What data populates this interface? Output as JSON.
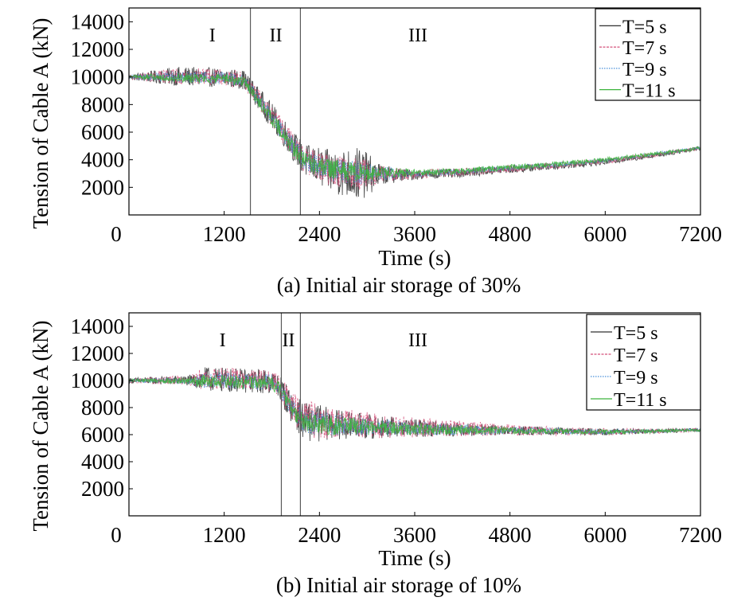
{
  "chart_data": [
    {
      "type": "line",
      "title": "(a) Initial air storage of 30%",
      "xlabel": "Time (s)",
      "ylabel": "Tension of Cable A (kN)",
      "xlim": [
        0,
        7200
      ],
      "ylim": [
        0,
        15000
      ],
      "xticks": [
        0,
        1200,
        2400,
        3600,
        4800,
        6000,
        7200
      ],
      "yticks": [
        2000,
        4000,
        6000,
        8000,
        10000,
        12000,
        14000
      ],
      "legend_position": "top-right",
      "stage_boundaries": [
        1530,
        2160
      ],
      "stage_labels": [
        {
          "text": "I",
          "x": 1050
        },
        {
          "text": "II",
          "x": 1850
        },
        {
          "text": "III",
          "x": 3640
        }
      ],
      "series": [
        {
          "name": "T=5 s",
          "color": "#303030",
          "dash": "",
          "noise": [
            [
              0,
              200
            ],
            [
              600,
              700
            ],
            [
              1450,
              700
            ],
            [
              2200,
              1200
            ],
            [
              2900,
              2000
            ],
            [
              3200,
              700
            ],
            [
              3600,
              350
            ],
            [
              7200,
              150
            ]
          ],
          "x": [
            0,
            300,
            600,
            900,
            1200,
            1450,
            1600,
            1900,
            2200,
            2500,
            2800,
            3100,
            3600,
            4200,
            4800,
            5400,
            6000,
            6600,
            7200
          ],
          "values": [
            10000,
            10000,
            10050,
            10000,
            9950,
            9800,
            8700,
            6400,
            4000,
            3200,
            3000,
            2900,
            2900,
            3050,
            3300,
            3550,
            3850,
            4300,
            4850
          ]
        },
        {
          "name": "T=7 s",
          "color": "#d4507a",
          "dash": "3,1.5",
          "noise": [
            [
              0,
              150
            ],
            [
              600,
              600
            ],
            [
              1450,
              600
            ],
            [
              2200,
              1000
            ],
            [
              2900,
              1200
            ],
            [
              3200,
              600
            ],
            [
              3600,
              300
            ],
            [
              7200,
              120
            ]
          ],
          "x": [
            0,
            300,
            600,
            900,
            1200,
            1450,
            1600,
            1900,
            2200,
            2500,
            2800,
            3100,
            3600,
            4200,
            4800,
            5400,
            6000,
            6600,
            7200
          ],
          "values": [
            10000,
            10000,
            10100,
            10050,
            9950,
            9800,
            8650,
            6350,
            3950,
            3250,
            3050,
            2950,
            2950,
            3100,
            3350,
            3600,
            3900,
            4350,
            4850
          ]
        },
        {
          "name": "T=9 s",
          "color": "#4a90d9",
          "dash": "1.5,1.5",
          "noise": [
            [
              0,
              120
            ],
            [
              600,
              450
            ],
            [
              1450,
              450
            ],
            [
              2200,
              800
            ],
            [
              2900,
              900
            ],
            [
              3200,
              500
            ],
            [
              3600,
              250
            ],
            [
              7200,
              100
            ]
          ],
          "x": [
            0,
            300,
            600,
            900,
            1200,
            1450,
            1600,
            1900,
            2200,
            2500,
            2800,
            3100,
            3600,
            4200,
            4800,
            5400,
            6000,
            6600,
            7200
          ],
          "values": [
            10000,
            10000,
            10000,
            10000,
            9900,
            9750,
            8600,
            6300,
            3950,
            3300,
            3100,
            3000,
            3000,
            3150,
            3400,
            3650,
            3950,
            4400,
            4850
          ]
        },
        {
          "name": "T=11 s",
          "color": "#3cb43c",
          "dash": "",
          "noise": [
            [
              0,
              100
            ],
            [
              600,
              350
            ],
            [
              1450,
              350
            ],
            [
              2200,
              700
            ],
            [
              2900,
              700
            ],
            [
              3200,
              450
            ],
            [
              3600,
              250
            ],
            [
              7200,
              120
            ]
          ],
          "x": [
            0,
            300,
            600,
            900,
            1200,
            1450,
            1600,
            1900,
            2200,
            2500,
            2800,
            3100,
            3600,
            4200,
            4800,
            5400,
            6000,
            6600,
            7200
          ],
          "values": [
            10000,
            10000,
            9950,
            9900,
            9850,
            9700,
            8500,
            6200,
            3900,
            3350,
            3150,
            3050,
            3050,
            3200,
            3450,
            3700,
            4000,
            4400,
            4850
          ]
        }
      ]
    },
    {
      "type": "line",
      "title": "(b) Initial air storage of 10%",
      "xlabel": "Time (s)",
      "ylabel": "Tension of Cable A (kN)",
      "xlim": [
        0,
        7200
      ],
      "ylim": [
        0,
        15000
      ],
      "xticks": [
        0,
        1200,
        2400,
        3600,
        4800,
        6000,
        7200
      ],
      "yticks": [
        2000,
        4000,
        6000,
        8000,
        10000,
        12000,
        14000
      ],
      "legend_position": "top-right",
      "stage_boundaries": [
        1920,
        2160
      ],
      "stage_labels": [
        {
          "text": "I",
          "x": 1180
        },
        {
          "text": "II",
          "x": 2010
        },
        {
          "text": "III",
          "x": 3640
        }
      ],
      "series": [
        {
          "name": "T=5 s",
          "color": "#303030",
          "dash": "",
          "noise": [
            [
              0,
              200
            ],
            [
              800,
              400
            ],
            [
              900,
              900
            ],
            [
              1850,
              900
            ],
            [
              2300,
              1500
            ],
            [
              2600,
              1100
            ],
            [
              3500,
              700
            ],
            [
              4800,
              350
            ],
            [
              7200,
              120
            ]
          ],
          "x": [
            0,
            400,
            800,
            1000,
            1400,
            1800,
            1900,
            2050,
            2200,
            2500,
            3000,
            3600,
            4200,
            4800,
            5400,
            6000,
            6600,
            7200
          ],
          "values": [
            10000,
            10000,
            10000,
            10100,
            10000,
            9900,
            9500,
            8000,
            7000,
            6800,
            6600,
            6500,
            6400,
            6300,
            6250,
            6200,
            6250,
            6350
          ]
        },
        {
          "name": "T=7 s",
          "color": "#d4507a",
          "dash": "3,1.5",
          "noise": [
            [
              0,
              150
            ],
            [
              800,
              400
            ],
            [
              900,
              800
            ],
            [
              1850,
              800
            ],
            [
              2300,
              1400
            ],
            [
              2600,
              1100
            ],
            [
              3500,
              800
            ],
            [
              4800,
              400
            ],
            [
              7200,
              120
            ]
          ],
          "x": [
            0,
            400,
            800,
            1000,
            1400,
            1800,
            1900,
            2050,
            2200,
            2500,
            3000,
            3600,
            4200,
            4800,
            5400,
            6000,
            6600,
            7200
          ],
          "values": [
            10000,
            10000,
            10050,
            10200,
            10100,
            9950,
            9550,
            8100,
            7100,
            6900,
            6700,
            6550,
            6450,
            6350,
            6250,
            6200,
            6250,
            6350
          ]
        },
        {
          "name": "T=9 s",
          "color": "#4a90d9",
          "dash": "1.5,1.5",
          "noise": [
            [
              0,
              120
            ],
            [
              800,
              300
            ],
            [
              900,
              600
            ],
            [
              1850,
              600
            ],
            [
              2300,
              900
            ],
            [
              2600,
              800
            ],
            [
              3500,
              500
            ],
            [
              4800,
              300
            ],
            [
              7200,
              100
            ]
          ],
          "x": [
            0,
            400,
            800,
            1000,
            1400,
            1800,
            1900,
            2050,
            2200,
            2500,
            3000,
            3600,
            4200,
            4800,
            5400,
            6000,
            6600,
            7200
          ],
          "values": [
            10000,
            10000,
            10000,
            10000,
            9950,
            9850,
            9450,
            8000,
            7000,
            6750,
            6600,
            6450,
            6350,
            6300,
            6250,
            6200,
            6250,
            6350
          ]
        },
        {
          "name": "T=11 s",
          "color": "#3cb43c",
          "dash": "",
          "noise": [
            [
              0,
              100
            ],
            [
              800,
              250
            ],
            [
              900,
              500
            ],
            [
              1850,
              500
            ],
            [
              2300,
              800
            ],
            [
              2600,
              700
            ],
            [
              3500,
              450
            ],
            [
              4800,
              250
            ],
            [
              7200,
              100
            ]
          ],
          "x": [
            0,
            400,
            800,
            1000,
            1400,
            1800,
            1900,
            2050,
            2200,
            2500,
            3000,
            3600,
            4200,
            4800,
            5400,
            6000,
            6600,
            7200
          ],
          "values": [
            10000,
            10000,
            9950,
            9900,
            9850,
            9800,
            9400,
            7950,
            6950,
            6700,
            6550,
            6400,
            6350,
            6300,
            6250,
            6200,
            6250,
            6350
          ]
        }
      ]
    }
  ]
}
